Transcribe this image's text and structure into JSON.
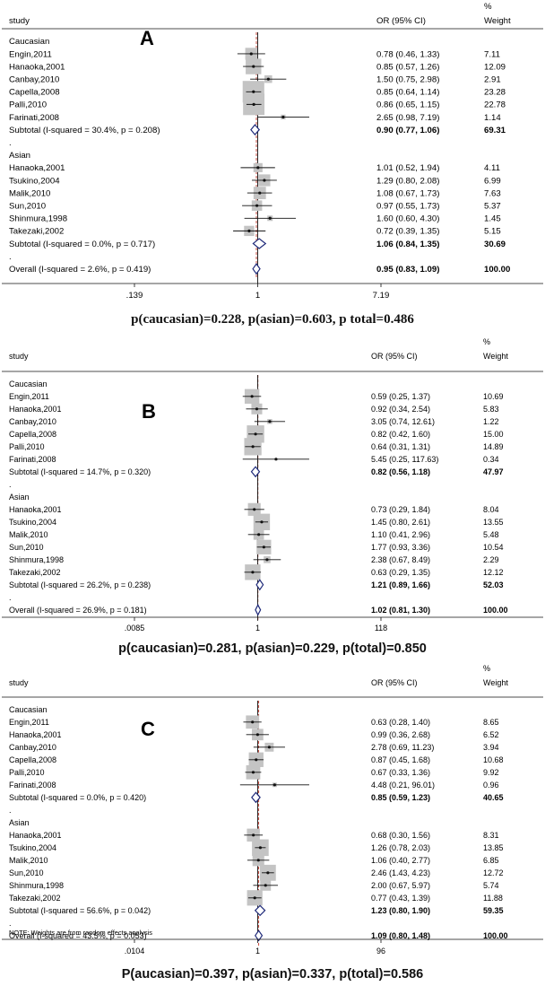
{
  "chart_data": [
    {
      "type": "forest",
      "letter": "A",
      "header": {
        "study": "study",
        "or": "OR (95% CI)",
        "weight_top": "%",
        "weight": "Weight"
      },
      "axis": {
        "log": true,
        "min": 0.139,
        "max": 7.19,
        "ticks": [
          ".139",
          "1",
          "7.19"
        ]
      },
      "subgroups": [
        {
          "name": "Caucasian",
          "studies": [
            {
              "study": "Engin,2011",
              "or": 0.78,
              "lo": 0.46,
              "hi": 1.33,
              "ci_text": "0.78 (0.46, 1.33)",
              "weight": "7.11"
            },
            {
              "study": "Hanaoka,2001",
              "or": 0.85,
              "lo": 0.57,
              "hi": 1.26,
              "ci_text": "0.85 (0.57, 1.26)",
              "weight": "12.09"
            },
            {
              "study": "Canbay,2010",
              "or": 1.5,
              "lo": 0.75,
              "hi": 2.98,
              "ci_text": "1.50 (0.75, 2.98)",
              "weight": "2.91"
            },
            {
              "study": "Capella,2008",
              "or": 0.85,
              "lo": 0.64,
              "hi": 1.14,
              "ci_text": "0.85 (0.64, 1.14)",
              "weight": "23.28"
            },
            {
              "study": "Palli,2010",
              "or": 0.86,
              "lo": 0.65,
              "hi": 1.15,
              "ci_text": "0.86 (0.65, 1.15)",
              "weight": "22.78"
            },
            {
              "study": "Farinati,2008",
              "or": 2.65,
              "lo": 0.98,
              "hi": 7.19,
              "ci_text": "2.65 (0.98, 7.19)",
              "weight": "1.14"
            }
          ],
          "subtotal": {
            "label": "Subtotal  (I-squared = 30.4%, p = 0.208)",
            "or": 0.9,
            "lo": 0.77,
            "hi": 1.06,
            "ci_text": "0.90 (0.77, 1.06)",
            "weight": "69.31"
          }
        },
        {
          "name": "Asian",
          "studies": [
            {
              "study": "Hanaoka,2001",
              "or": 1.01,
              "lo": 0.52,
              "hi": 1.94,
              "ci_text": "1.01 (0.52, 1.94)",
              "weight": "4.11"
            },
            {
              "study": "Tsukino,2004",
              "or": 1.29,
              "lo": 0.8,
              "hi": 2.08,
              "ci_text": "1.29 (0.80, 2.08)",
              "weight": "6.99"
            },
            {
              "study": "Malik,2010",
              "or": 1.08,
              "lo": 0.67,
              "hi": 1.73,
              "ci_text": "1.08 (0.67, 1.73)",
              "weight": "7.63"
            },
            {
              "study": "Sun,2010",
              "or": 0.97,
              "lo": 0.55,
              "hi": 1.73,
              "ci_text": "0.97 (0.55, 1.73)",
              "weight": "5.37"
            },
            {
              "study": "Shinmura,1998",
              "or": 1.6,
              "lo": 0.6,
              "hi": 4.3,
              "ci_text": "1.60 (0.60, 4.30)",
              "weight": "1.45"
            },
            {
              "study": "Takezaki,2002",
              "or": 0.72,
              "lo": 0.39,
              "hi": 1.35,
              "ci_text": "0.72 (0.39, 1.35)",
              "weight": "5.15"
            }
          ],
          "subtotal": {
            "label": "Subtotal  (I-squared = 0.0%, p = 0.717)",
            "or": 1.06,
            "lo": 0.84,
            "hi": 1.35,
            "ci_text": "1.06 (0.84, 1.35)",
            "weight": "30.69"
          }
        }
      ],
      "overall": {
        "label": "Overall  (I-squared = 2.6%, p = 0.419)",
        "or": 0.95,
        "lo": 0.83,
        "hi": 1.09,
        "ci_text": "0.95 (0.83, 1.09)",
        "weight": "100.00"
      },
      "note": "",
      "caption": "p(caucasian)=0.228, p(asian)=0.603, p total=0.486"
    },
    {
      "type": "forest",
      "letter": "B",
      "header": {
        "study": "study",
        "or": "OR (95% CI)",
        "weight_top": "%",
        "weight": "Weight"
      },
      "axis": {
        "log": true,
        "min": 0.0085,
        "max": 118,
        "ticks": [
          ".0085",
          "1",
          "118"
        ]
      },
      "subgroups": [
        {
          "name": "Caucasian",
          "studies": [
            {
              "study": "Engin,2011",
              "or": 0.59,
              "lo": 0.25,
              "hi": 1.37,
              "ci_text": "0.59 (0.25, 1.37)",
              "weight": "10.69"
            },
            {
              "study": "Hanaoka,2001",
              "or": 0.92,
              "lo": 0.34,
              "hi": 2.54,
              "ci_text": "0.92 (0.34, 2.54)",
              "weight": "5.83"
            },
            {
              "study": "Canbay,2010",
              "or": 3.05,
              "lo": 0.74,
              "hi": 12.61,
              "ci_text": "3.05 (0.74, 12.61)",
              "weight": "1.22"
            },
            {
              "study": "Capella,2008",
              "or": 0.82,
              "lo": 0.42,
              "hi": 1.6,
              "ci_text": "0.82 (0.42, 1.60)",
              "weight": "15.00"
            },
            {
              "study": "Palli,2010",
              "or": 0.64,
              "lo": 0.31,
              "hi": 1.31,
              "ci_text": "0.64 (0.31, 1.31)",
              "weight": "14.89"
            },
            {
              "study": "Farinati,2008",
              "or": 5.45,
              "lo": 0.25,
              "hi": 117.63,
              "ci_text": "5.45 (0.25, 117.63)",
              "weight": "0.34"
            }
          ],
          "subtotal": {
            "label": "Subtotal  (I-squared = 14.7%, p = 0.320)",
            "or": 0.82,
            "lo": 0.56,
            "hi": 1.18,
            "ci_text": "0.82 (0.56, 1.18)",
            "weight": "47.97"
          }
        },
        {
          "name": "Asian",
          "studies": [
            {
              "study": "Hanaoka,2001",
              "or": 0.73,
              "lo": 0.29,
              "hi": 1.84,
              "ci_text": "0.73 (0.29, 1.84)",
              "weight": "8.04"
            },
            {
              "study": "Tsukino,2004",
              "or": 1.45,
              "lo": 0.8,
              "hi": 2.61,
              "ci_text": "1.45 (0.80, 2.61)",
              "weight": "13.55"
            },
            {
              "study": "Malik,2010",
              "or": 1.1,
              "lo": 0.41,
              "hi": 2.96,
              "ci_text": "1.10 (0.41, 2.96)",
              "weight": "5.48"
            },
            {
              "study": "Sun,2010",
              "or": 1.77,
              "lo": 0.93,
              "hi": 3.36,
              "ci_text": "1.77 (0.93, 3.36)",
              "weight": "10.54"
            },
            {
              "study": "Shinmura,1998",
              "or": 2.38,
              "lo": 0.67,
              "hi": 8.49,
              "ci_text": "2.38 (0.67, 8.49)",
              "weight": "2.29"
            },
            {
              "study": "Takezaki,2002",
              "or": 0.63,
              "lo": 0.29,
              "hi": 1.35,
              "ci_text": "0.63 (0.29, 1.35)",
              "weight": "12.12"
            }
          ],
          "subtotal": {
            "label": "Subtotal  (I-squared = 26.2%, p = 0.238)",
            "or": 1.21,
            "lo": 0.89,
            "hi": 1.66,
            "ci_text": "1.21 (0.89, 1.66)",
            "weight": "52.03"
          }
        }
      ],
      "overall": {
        "label": "Overall  (I-squared = 26.9%, p = 0.181)",
        "or": 1.02,
        "lo": 0.81,
        "hi": 1.3,
        "ci_text": "1.02 (0.81, 1.30)",
        "weight": "100.00"
      },
      "note": "",
      "caption": "p(caucasian)=0.281, p(asian)=0.229, p(total)=0.850"
    },
    {
      "type": "forest",
      "letter": "C",
      "header": {
        "study": "study",
        "or": "OR (95% CI)",
        "weight_top": "%",
        "weight": "Weight"
      },
      "axis": {
        "log": true,
        "min": 0.0104,
        "max": 96,
        "ticks": [
          ".0104",
          "1",
          "96"
        ]
      },
      "subgroups": [
        {
          "name": "Caucasian",
          "studies": [
            {
              "study": "Engin,2011",
              "or": 0.63,
              "lo": 0.28,
              "hi": 1.4,
              "ci_text": "0.63 (0.28, 1.40)",
              "weight": "8.65"
            },
            {
              "study": "Hanaoka,2001",
              "or": 0.99,
              "lo": 0.36,
              "hi": 2.68,
              "ci_text": "0.99 (0.36, 2.68)",
              "weight": "6.52"
            },
            {
              "study": "Canbay,2010",
              "or": 2.78,
              "lo": 0.69,
              "hi": 11.23,
              "ci_text": "2.78 (0.69, 11.23)",
              "weight": "3.94"
            },
            {
              "study": "Capella,2008",
              "or": 0.87,
              "lo": 0.45,
              "hi": 1.68,
              "ci_text": "0.87 (0.45, 1.68)",
              "weight": "10.68"
            },
            {
              "study": "Palli,2010",
              "or": 0.67,
              "lo": 0.33,
              "hi": 1.36,
              "ci_text": "0.67 (0.33, 1.36)",
              "weight": "9.92"
            },
            {
              "study": "Farinati,2008",
              "or": 4.48,
              "lo": 0.21,
              "hi": 96.01,
              "ci_text": "4.48 (0.21, 96.01)",
              "weight": "0.96"
            }
          ],
          "subtotal": {
            "label": "Subtotal  (I-squared = 0.0%, p = 0.420)",
            "or": 0.85,
            "lo": 0.59,
            "hi": 1.23,
            "ci_text": "0.85 (0.59, 1.23)",
            "weight": "40.65"
          }
        },
        {
          "name": "Asian",
          "studies": [
            {
              "study": "Hanaoka,2001",
              "or": 0.68,
              "lo": 0.3,
              "hi": 1.56,
              "ci_text": "0.68 (0.30, 1.56)",
              "weight": "8.31"
            },
            {
              "study": "Tsukino,2004",
              "or": 1.26,
              "lo": 0.78,
              "hi": 2.03,
              "ci_text": "1.26 (0.78, 2.03)",
              "weight": "13.85"
            },
            {
              "study": "Malik,2010",
              "or": 1.06,
              "lo": 0.4,
              "hi": 2.77,
              "ci_text": "1.06 (0.40, 2.77)",
              "weight": "6.85"
            },
            {
              "study": "Sun,2010",
              "or": 2.46,
              "lo": 1.43,
              "hi": 4.23,
              "ci_text": "2.46 (1.43, 4.23)",
              "weight": "12.72"
            },
            {
              "study": "Shinmura,1998",
              "or": 2.0,
              "lo": 0.67,
              "hi": 5.97,
              "ci_text": "2.00 (0.67, 5.97)",
              "weight": "5.74"
            },
            {
              "study": "Takezaki,2002",
              "or": 0.77,
              "lo": 0.43,
              "hi": 1.39,
              "ci_text": "0.77 (0.43, 1.39)",
              "weight": "11.88"
            }
          ],
          "subtotal": {
            "label": "Subtotal  (I-squared = 56.6%, p = 0.042)",
            "or": 1.23,
            "lo": 0.8,
            "hi": 1.9,
            "ci_text": "1.23 (0.80, 1.90)",
            "weight": "59.35"
          }
        }
      ],
      "overall": {
        "label": "Overall  (I-squared = 43.5%, p = 0.053)",
        "or": 1.09,
        "lo": 0.8,
        "hi": 1.48,
        "ci_text": "1.09 (0.80, 1.48)",
        "weight": "100.00"
      },
      "note": "NOTE: Weights are from random effects analysis",
      "caption": "P(aucasian)=0.397, p(asian)=0.337, p(total)=0.586"
    }
  ],
  "colors": {
    "box": "#c4c4c4",
    "line": "#111111",
    "diamond": "#1f2a7a",
    "null_line": "#111111",
    "overall_line": "#c0392b"
  }
}
